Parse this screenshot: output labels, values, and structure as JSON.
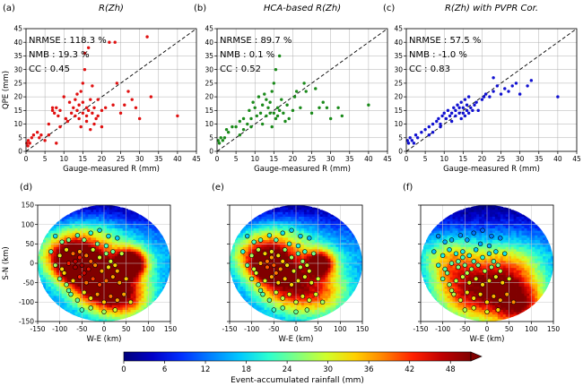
{
  "chart_data": [
    {
      "type": "scatter",
      "panel_label": "(a)",
      "title": "R(Zh)",
      "xlabel": "Gauge-measured R (mm)",
      "ylabel": "QPE (mm)",
      "xlim": [
        0,
        45
      ],
      "ylim": [
        0,
        45
      ],
      "xticks": [
        0,
        5,
        10,
        15,
        20,
        25,
        30,
        35,
        40,
        45
      ],
      "yticks": [
        0,
        5,
        10,
        15,
        20,
        25,
        30,
        35,
        40,
        45
      ],
      "grid": true,
      "color": "#e01010",
      "stats": [
        "NRMSE : 118.3 %",
        "NMB : 19.3 %",
        "CC : 0.45"
      ],
      "points": [
        [
          0.2,
          3
        ],
        [
          0.5,
          2
        ],
        [
          0.6,
          4
        ],
        [
          1,
          3
        ],
        [
          1.5,
          5
        ],
        [
          2,
          6
        ],
        [
          3,
          7
        ],
        [
          3.5,
          5
        ],
        [
          4,
          6
        ],
        [
          5,
          4
        ],
        [
          6,
          10
        ],
        [
          7,
          15
        ],
        [
          7.5,
          14
        ],
        [
          8,
          16
        ],
        [
          8.5,
          13
        ],
        [
          9,
          15
        ],
        [
          10,
          20
        ],
        [
          10.5,
          12
        ],
        [
          11,
          11
        ],
        [
          11.5,
          18
        ],
        [
          12,
          14
        ],
        [
          12.5,
          16
        ],
        [
          13,
          13
        ],
        [
          13,
          19
        ],
        [
          13.5,
          15
        ],
        [
          13.5,
          21
        ],
        [
          14,
          12
        ],
        [
          14,
          17
        ],
        [
          14.5,
          22
        ],
        [
          14.5,
          9
        ],
        [
          15,
          14
        ],
        [
          15,
          18
        ],
        [
          15,
          25
        ],
        [
          15.5,
          30
        ],
        [
          15.5,
          36
        ],
        [
          16,
          13
        ],
        [
          16,
          16
        ],
        [
          16,
          11
        ],
        [
          16.5,
          15
        ],
        [
          16.5,
          38
        ],
        [
          17,
          19
        ],
        [
          17,
          8
        ],
        [
          17.5,
          14
        ],
        [
          17.5,
          24
        ],
        [
          18,
          10
        ],
        [
          18,
          16
        ],
        [
          18.5,
          12
        ],
        [
          19,
          19
        ],
        [
          19,
          13
        ],
        [
          20,
          15
        ],
        [
          20,
          9
        ],
        [
          21,
          16
        ],
        [
          22,
          40
        ],
        [
          23,
          17
        ],
        [
          23.5,
          40
        ],
        [
          24,
          25
        ],
        [
          25,
          14
        ],
        [
          26,
          17
        ],
        [
          27,
          22
        ],
        [
          28,
          19
        ],
        [
          29,
          16
        ],
        [
          30,
          12
        ],
        [
          32,
          42
        ],
        [
          33,
          20
        ],
        [
          40,
          13
        ],
        [
          7,
          16
        ],
        [
          9,
          9
        ],
        [
          6,
          6
        ],
        [
          8,
          3
        ]
      ]
    },
    {
      "type": "scatter",
      "panel_label": "(b)",
      "title": "HCA-based R(Zh)",
      "xlabel": "Gauge-measured R (mm)",
      "ylabel": "",
      "xlim": [
        0,
        45
      ],
      "ylim": [
        0,
        45
      ],
      "xticks": [
        0,
        5,
        10,
        15,
        20,
        25,
        30,
        35,
        40,
        45
      ],
      "yticks": [
        0,
        5,
        10,
        15,
        20,
        25,
        30,
        35,
        40,
        45
      ],
      "grid": true,
      "color": "#1a8a1a",
      "stats": [
        "NRMSE : 89.7 %",
        "NMB : 0.1 %",
        "CC : 0.52"
      ],
      "points": [
        [
          0.3,
          4
        ],
        [
          0.6,
          3
        ],
        [
          1,
          5
        ],
        [
          1.5,
          4
        ],
        [
          2,
          5
        ],
        [
          2.5,
          8
        ],
        [
          3,
          7
        ],
        [
          4,
          9
        ],
        [
          5,
          9
        ],
        [
          6,
          11
        ],
        [
          7,
          12
        ],
        [
          8,
          10
        ],
        [
          8.5,
          15
        ],
        [
          9,
          12
        ],
        [
          9.5,
          18
        ],
        [
          10,
          16
        ],
        [
          10.5,
          13
        ],
        [
          11,
          20
        ],
        [
          11.5,
          14
        ],
        [
          12,
          17
        ],
        [
          12.5,
          21
        ],
        [
          13,
          13
        ],
        [
          13,
          19
        ],
        [
          13.5,
          16
        ],
        [
          14,
          18
        ],
        [
          14,
          14
        ],
        [
          14.5,
          22
        ],
        [
          14.5,
          9
        ],
        [
          15,
          14
        ],
        [
          15,
          25
        ],
        [
          15.5,
          30
        ],
        [
          15.5,
          12
        ],
        [
          16,
          16
        ],
        [
          16,
          13
        ],
        [
          16.5,
          15
        ],
        [
          16.5,
          35
        ],
        [
          17,
          19
        ],
        [
          17.5,
          14
        ],
        [
          18,
          11
        ],
        [
          18.5,
          17
        ],
        [
          19,
          12
        ],
        [
          20,
          15
        ],
        [
          20.5,
          20
        ],
        [
          21,
          22
        ],
        [
          22,
          16
        ],
        [
          23,
          25
        ],
        [
          23.5,
          22
        ],
        [
          25,
          14
        ],
        [
          26,
          23
        ],
        [
          27,
          16
        ],
        [
          28,
          18
        ],
        [
          29,
          16
        ],
        [
          30,
          12
        ],
        [
          32,
          16
        ],
        [
          33,
          13
        ],
        [
          40,
          17
        ],
        [
          7,
          8
        ],
        [
          9,
          9
        ],
        [
          6,
          6
        ],
        [
          12,
          10
        ]
      ]
    },
    {
      "type": "scatter",
      "panel_label": "(c)",
      "title": "R(Zh) with PVPR Cor.",
      "xlabel": "Gauge-measured R (mm)",
      "ylabel": "",
      "xlim": [
        0,
        45
      ],
      "ylim": [
        0,
        45
      ],
      "xticks": [
        0,
        5,
        10,
        15,
        20,
        25,
        30,
        35,
        40,
        45
      ],
      "yticks": [
        0,
        5,
        10,
        15,
        20,
        25,
        30,
        35,
        40,
        45
      ],
      "grid": true,
      "color": "#1010d0",
      "stats": [
        "NRMSE : 57.5 %",
        "NMB : -1.0 %",
        "CC : 0.83"
      ],
      "points": [
        [
          0.3,
          4
        ],
        [
          0.6,
          3
        ],
        [
          1,
          5
        ],
        [
          1.5,
          4
        ],
        [
          2,
          3
        ],
        [
          2.5,
          6
        ],
        [
          3,
          5
        ],
        [
          4,
          7
        ],
        [
          5,
          8
        ],
        [
          6,
          9
        ],
        [
          7,
          10
        ],
        [
          8,
          11
        ],
        [
          8.5,
          12
        ],
        [
          9,
          10
        ],
        [
          9.5,
          13
        ],
        [
          10,
          14
        ],
        [
          10.5,
          12
        ],
        [
          11,
          15
        ],
        [
          11.5,
          13
        ],
        [
          12,
          14
        ],
        [
          12.5,
          16
        ],
        [
          13,
          13
        ],
        [
          13,
          15
        ],
        [
          13.5,
          17
        ],
        [
          14,
          14
        ],
        [
          14,
          16
        ],
        [
          14.5,
          18
        ],
        [
          14.5,
          12
        ],
        [
          15,
          14
        ],
        [
          15,
          16
        ],
        [
          15.5,
          19
        ],
        [
          15.5,
          13
        ],
        [
          16,
          15
        ],
        [
          16,
          17
        ],
        [
          16.5,
          14
        ],
        [
          16.5,
          20
        ],
        [
          17,
          16
        ],
        [
          17.5,
          15
        ],
        [
          18,
          17
        ],
        [
          18.5,
          18
        ],
        [
          19,
          15
        ],
        [
          20,
          19
        ],
        [
          20.5,
          20
        ],
        [
          21,
          21
        ],
        [
          22,
          20
        ],
        [
          23,
          22
        ],
        [
          24,
          24
        ],
        [
          25,
          21
        ],
        [
          26,
          23
        ],
        [
          27,
          22
        ],
        [
          28,
          24
        ],
        [
          29,
          25
        ],
        [
          30,
          21
        ],
        [
          32,
          24
        ],
        [
          33,
          26
        ],
        [
          40,
          20
        ],
        [
          7,
          7
        ],
        [
          9,
          9
        ],
        [
          6,
          6
        ],
        [
          12,
          11
        ],
        [
          23,
          27
        ]
      ]
    },
    {
      "type": "heatmap",
      "panel_label": "(d)",
      "xlabel": "W-E (km)",
      "ylabel": "S-N (km)",
      "xlim": [
        -150,
        150
      ],
      "ylim": [
        -150,
        150
      ],
      "xticks": [
        -150,
        -100,
        -50,
        0,
        50,
        100,
        150
      ],
      "yticks": [
        -150,
        -100,
        -50,
        0,
        50,
        100,
        150
      ],
      "grid": true,
      "blobs": [
        [
          60,
          0,
          24,
          46
        ],
        [
          -60,
          -10,
          28,
          36
        ],
        [
          -10,
          -60,
          40,
          30
        ],
        [
          -90,
          20,
          40,
          22
        ],
        [
          50,
          -90,
          40,
          24
        ],
        [
          -40,
          40,
          50,
          16
        ],
        [
          0,
          -30,
          80,
          18
        ]
      ]
    },
    {
      "type": "heatmap",
      "panel_label": "(e)",
      "xlabel": "W-E (km)",
      "ylabel": "",
      "xlim": [
        -150,
        150
      ],
      "ylim": [
        -150,
        150
      ],
      "xticks": [
        -150,
        -100,
        -50,
        0,
        50,
        100,
        150
      ],
      "yticks": [
        -150,
        -100,
        -50,
        0,
        50,
        100,
        150
      ],
      "grid": true,
      "blobs": [
        [
          55,
          0,
          22,
          34
        ],
        [
          -60,
          -10,
          28,
          24
        ],
        [
          -20,
          -60,
          45,
          22
        ],
        [
          -90,
          20,
          40,
          18
        ],
        [
          60,
          -80,
          45,
          18
        ],
        [
          -40,
          40,
          50,
          14
        ],
        [
          0,
          -30,
          80,
          14
        ]
      ]
    },
    {
      "type": "heatmap",
      "panel_label": "(f)",
      "xlabel": "W-E (km)",
      "ylabel": "",
      "xlim": [
        -150,
        150
      ],
      "ylim": [
        -150,
        150
      ],
      "xticks": [
        -150,
        -100,
        -50,
        0,
        50,
        100,
        150
      ],
      "yticks": [
        -150,
        -100,
        -50,
        0,
        50,
        100,
        150
      ],
      "grid": true,
      "blobs": [
        [
          40,
          -100,
          60,
          22
        ],
        [
          -60,
          -80,
          50,
          18
        ],
        [
          60,
          -20,
          50,
          16
        ],
        [
          -90,
          10,
          40,
          15
        ],
        [
          -20,
          -40,
          60,
          16
        ],
        [
          80,
          -110,
          40,
          20
        ]
      ]
    }
  ],
  "gauges": [
    [
      -110,
      70
    ],
    [
      -95,
      55
    ],
    [
      -80,
      60
    ],
    [
      -60,
      72
    ],
    [
      -45,
      60
    ],
    [
      -30,
      78
    ],
    [
      -10,
      85
    ],
    [
      10,
      70
    ],
    [
      30,
      65
    ],
    [
      -120,
      30
    ],
    [
      -100,
      20
    ],
    [
      -85,
      35
    ],
    [
      -70,
      25
    ],
    [
      -55,
      30
    ],
    [
      -40,
      20
    ],
    [
      -25,
      35
    ],
    [
      -10,
      15
    ],
    [
      5,
      25
    ],
    [
      20,
      30
    ],
    [
      40,
      25
    ],
    [
      -110,
      -5
    ],
    [
      -95,
      -15
    ],
    [
      -80,
      0
    ],
    [
      -65,
      -10
    ],
    [
      -50,
      -5
    ],
    [
      -35,
      -15
    ],
    [
      -20,
      -5
    ],
    [
      -5,
      -20
    ],
    [
      10,
      -10
    ],
    [
      25,
      -5
    ],
    [
      -100,
      -40
    ],
    [
      -85,
      -55
    ],
    [
      -70,
      -45
    ],
    [
      -55,
      -35
    ],
    [
      -40,
      -50
    ],
    [
      -25,
      -40
    ],
    [
      -10,
      -55
    ],
    [
      5,
      -45
    ],
    [
      20,
      -35
    ],
    [
      35,
      -50
    ],
    [
      50,
      -40
    ],
    [
      -75,
      -80
    ],
    [
      -60,
      -95
    ],
    [
      -45,
      -75
    ],
    [
      -30,
      -90
    ],
    [
      -15,
      -80
    ],
    [
      0,
      -100
    ],
    [
      15,
      -85
    ],
    [
      30,
      -95
    ],
    [
      45,
      -80
    ],
    [
      60,
      -100
    ],
    [
      -50,
      -120
    ],
    [
      -30,
      -115
    ],
    [
      0,
      -125
    ],
    [
      25,
      -120
    ],
    [
      -65,
      5
    ],
    [
      -55,
      15
    ],
    [
      -45,
      -25
    ],
    [
      -30,
      5
    ],
    [
      -15,
      50
    ],
    [
      5,
      45
    ],
    [
      -90,
      -25
    ],
    [
      15,
      5
    ],
    [
      30,
      -20
    ],
    [
      -80,
      -70
    ]
  ],
  "colorbar": {
    "label": "Event-accumulated rainfall (mm)",
    "ticks": [
      0,
      6,
      12,
      18,
      24,
      30,
      36,
      42,
      48
    ],
    "min": 0,
    "max": 51,
    "colors": [
      "#00007a",
      "#0000c8",
      "#0030ff",
      "#0080ff",
      "#00c8ff",
      "#2cffd0",
      "#80ff80",
      "#d0ff2c",
      "#ffd000",
      "#ff8000",
      "#ff2000",
      "#c00000",
      "#800000"
    ]
  }
}
